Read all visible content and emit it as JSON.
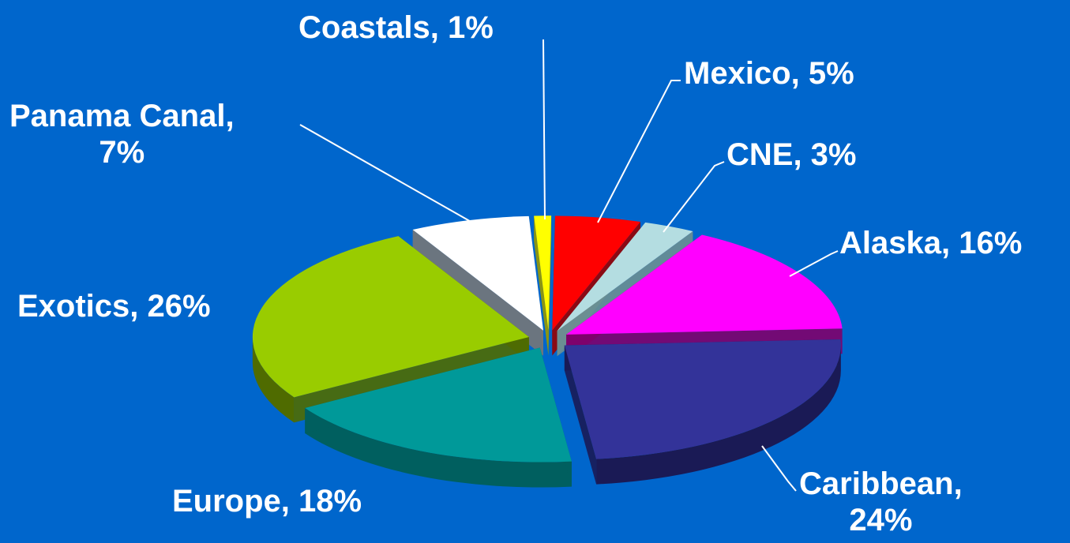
{
  "background": "#0066cc",
  "chart_data": {
    "type": "pie",
    "style": "3D exploded pie",
    "slices": [
      {
        "name": "Coastals",
        "value": 1,
        "color": "#ffff00",
        "side": "#999900",
        "label_lines": [
          "Coastals, 1%"
        ]
      },
      {
        "name": "Mexico",
        "value": 5,
        "color": "#ff0000",
        "side": "#990000",
        "label_lines": [
          "Mexico, 5%"
        ]
      },
      {
        "name": "CNE",
        "value": 3,
        "color": "#b4dde1",
        "side": "#6c8f92",
        "label_lines": [
          "CNE, 3%"
        ]
      },
      {
        "name": "Alaska",
        "value": 16,
        "color": "#ff00ff",
        "side": "#80006b",
        "label_lines": [
          "Alaska, 16%"
        ]
      },
      {
        "name": "Caribbean",
        "value": 24,
        "color": "#333399",
        "side": "#1a1a55",
        "label_lines": [
          "Caribbean,",
          "24%"
        ]
      },
      {
        "name": "Europe",
        "value": 18,
        "color": "#009999",
        "side": "#005f5f",
        "label_lines": [
          "Europe, 18%"
        ]
      },
      {
        "name": "Exotics",
        "value": 26,
        "color": "#99cc00",
        "side": "#4f6b00",
        "label_lines": [
          "Exotics, 26%"
        ]
      },
      {
        "name": "Panama Canal",
        "value": 7,
        "color": "#ffffff",
        "side": "#777777",
        "label_lines": [
          "Panama Canal,",
          "7%"
        ]
      }
    ]
  }
}
